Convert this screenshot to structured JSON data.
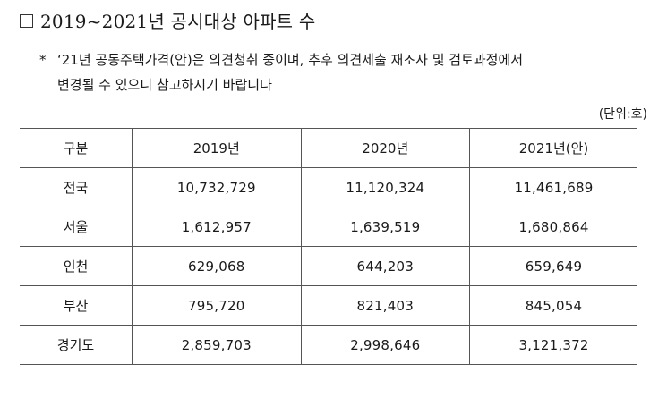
{
  "title": "2019~2021년 공시대상 아파트 수",
  "note": {
    "marker": "*",
    "line1": "‘21년 공동주택가격(안)은 의견청취 중이며, 추후 의견제출 재조사 및 검토과정에서",
    "line2": "변경될 수 있으니 참고하시기 바랍니다"
  },
  "unit": "(단위:호)",
  "table": {
    "headers": [
      "구분",
      "2019년",
      "2020년",
      "2021년(안)"
    ],
    "rows": [
      [
        "전국",
        "10,732,729",
        "11,120,324",
        "11,461,689"
      ],
      [
        "서울",
        "1,612,957",
        "1,639,519",
        "1,680,864"
      ],
      [
        "인천",
        "629,068",
        "644,203",
        "659,649"
      ],
      [
        "부산",
        "795,720",
        "821,403",
        "845,054"
      ],
      [
        "경기도",
        "2,859,703",
        "2,998,646",
        "3,121,372"
      ]
    ]
  }
}
